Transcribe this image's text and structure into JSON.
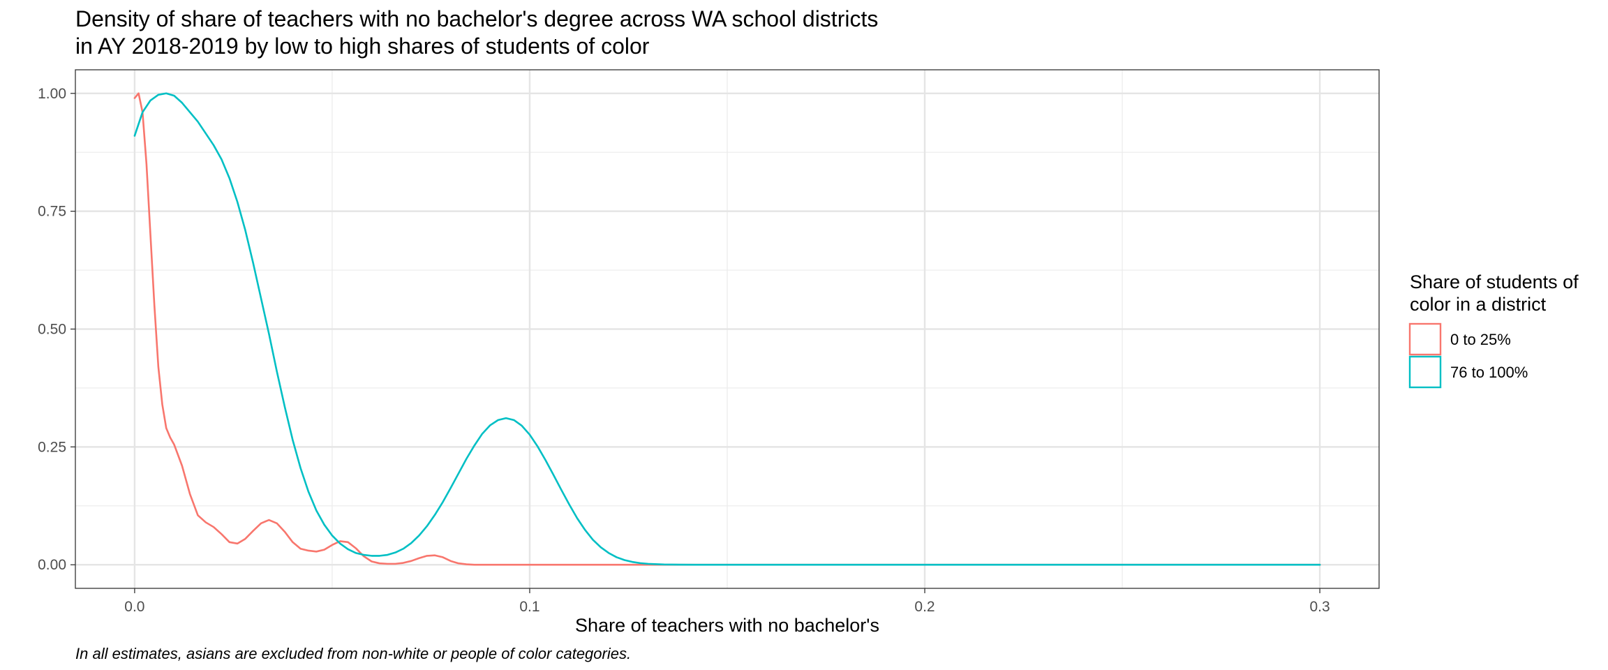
{
  "chart_data": {
    "type": "line",
    "title": [
      "Density of share of teachers with no bachelor's degree across WA school districts",
      "in AY 2018-2019 by low to high shares of students of color"
    ],
    "xlabel": "Share of teachers with no bachelor's",
    "ylabel": "",
    "caption": "In all estimates, asians are excluded from non-white or people of color categories.",
    "xlim": [
      -0.015,
      0.315
    ],
    "ylim": [
      -0.05,
      1.05
    ],
    "x_ticks": [
      0.0,
      0.1,
      0.2,
      0.3
    ],
    "x_tick_labels": [
      "0.0",
      "0.1",
      "0.2",
      "0.3"
    ],
    "x_minor_ticks": [
      0.05,
      0.15,
      0.25
    ],
    "y_ticks": [
      0.0,
      0.25,
      0.5,
      0.75,
      1.0
    ],
    "y_tick_labels": [
      "0.00",
      "0.25",
      "0.50",
      "0.75",
      "1.00"
    ],
    "y_minor_ticks": [
      0.125,
      0.375,
      0.625,
      0.875
    ],
    "grid": true,
    "legend": {
      "title": [
        "Share of students of",
        "color in a district"
      ],
      "placement": "right"
    },
    "series": [
      {
        "name": "0 to 25%",
        "color": "#F8766D",
        "x": [
          0.0,
          0.001,
          0.002,
          0.003,
          0.004,
          0.005,
          0.006,
          0.007,
          0.008,
          0.009,
          0.01,
          0.012,
          0.014,
          0.016,
          0.018,
          0.02,
          0.022,
          0.024,
          0.026,
          0.028,
          0.03,
          0.032,
          0.034,
          0.036,
          0.038,
          0.04,
          0.042,
          0.044,
          0.046,
          0.048,
          0.05,
          0.052,
          0.054,
          0.056,
          0.058,
          0.06,
          0.062,
          0.064,
          0.066,
          0.068,
          0.07,
          0.072,
          0.074,
          0.076,
          0.078,
          0.08,
          0.082,
          0.084,
          0.086,
          0.09,
          0.1,
          0.12,
          0.15,
          0.2,
          0.25,
          0.3
        ],
        "y": [
          0.99,
          1.0,
          0.96,
          0.85,
          0.7,
          0.55,
          0.42,
          0.34,
          0.29,
          0.27,
          0.255,
          0.21,
          0.15,
          0.105,
          0.09,
          0.08,
          0.065,
          0.048,
          0.045,
          0.055,
          0.072,
          0.088,
          0.095,
          0.088,
          0.07,
          0.048,
          0.034,
          0.03,
          0.028,
          0.032,
          0.042,
          0.05,
          0.048,
          0.035,
          0.018,
          0.007,
          0.003,
          0.002,
          0.002,
          0.004,
          0.008,
          0.014,
          0.019,
          0.02,
          0.016,
          0.008,
          0.003,
          0.001,
          0.0,
          0.0,
          0.0,
          0.0,
          0.0,
          0.0,
          0.0,
          0.0
        ]
      },
      {
        "name": "76 to 100%",
        "color": "#00BFC4",
        "x": [
          0.0,
          0.002,
          0.004,
          0.006,
          0.008,
          0.01,
          0.012,
          0.014,
          0.016,
          0.018,
          0.02,
          0.022,
          0.024,
          0.026,
          0.028,
          0.03,
          0.032,
          0.034,
          0.036,
          0.038,
          0.04,
          0.042,
          0.044,
          0.046,
          0.048,
          0.05,
          0.052,
          0.054,
          0.056,
          0.058,
          0.06,
          0.062,
          0.064,
          0.066,
          0.068,
          0.07,
          0.072,
          0.074,
          0.076,
          0.078,
          0.08,
          0.082,
          0.084,
          0.086,
          0.088,
          0.09,
          0.092,
          0.094,
          0.096,
          0.098,
          0.1,
          0.102,
          0.104,
          0.106,
          0.108,
          0.11,
          0.112,
          0.114,
          0.116,
          0.118,
          0.12,
          0.122,
          0.124,
          0.126,
          0.128,
          0.13,
          0.134,
          0.138,
          0.142,
          0.15,
          0.2,
          0.25,
          0.3
        ],
        "y": [
          0.91,
          0.96,
          0.985,
          0.997,
          1.0,
          0.995,
          0.98,
          0.96,
          0.94,
          0.915,
          0.89,
          0.86,
          0.82,
          0.77,
          0.71,
          0.64,
          0.565,
          0.49,
          0.41,
          0.335,
          0.265,
          0.205,
          0.155,
          0.115,
          0.085,
          0.062,
          0.045,
          0.033,
          0.025,
          0.021,
          0.019,
          0.019,
          0.021,
          0.026,
          0.034,
          0.046,
          0.062,
          0.082,
          0.106,
          0.133,
          0.163,
          0.194,
          0.225,
          0.253,
          0.278,
          0.296,
          0.307,
          0.311,
          0.307,
          0.295,
          0.276,
          0.251,
          0.222,
          0.191,
          0.159,
          0.128,
          0.099,
          0.074,
          0.053,
          0.037,
          0.025,
          0.016,
          0.01,
          0.006,
          0.0035,
          0.002,
          0.0006,
          0.0002,
          0.0,
          0.0,
          0.0,
          0.0,
          0.0
        ]
      }
    ]
  }
}
